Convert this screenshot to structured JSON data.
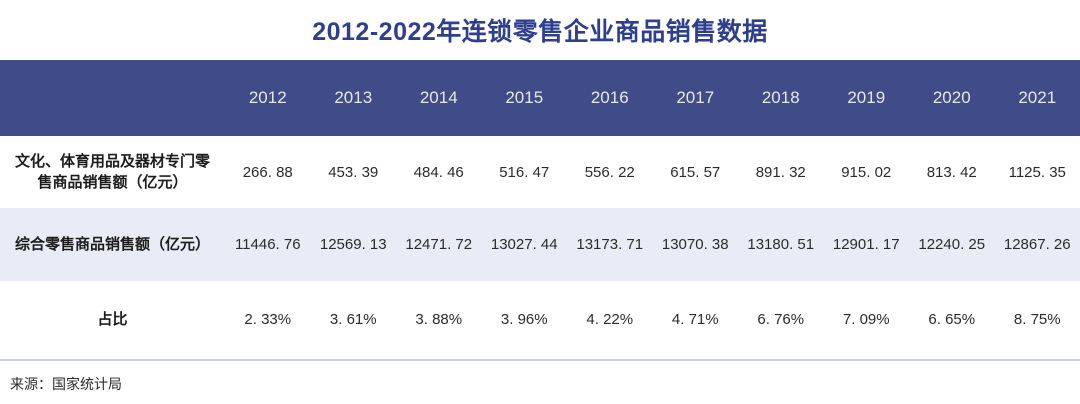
{
  "title": "2012-2022年连锁零售企业商品销售数据",
  "colors": {
    "header_bg": "#3f4c87",
    "title_text": "#2e3f8f",
    "alt_row_bg": "#e9ecf6",
    "divider": "#c9cfe4",
    "header_text": "#e6e9f2",
    "body_text": "#2b2b2b"
  },
  "table": {
    "years": [
      "2012",
      "2013",
      "2014",
      "2015",
      "2016",
      "2017",
      "2018",
      "2019",
      "2020",
      "2021"
    ],
    "rows": [
      {
        "label": "文化、体育用品及器材专门零售商品销售额（亿元）",
        "values": [
          "266. 88",
          "453. 39",
          "484. 46",
          "516. 47",
          "556. 22",
          "615. 57",
          "891. 32",
          "915. 02",
          "813. 42",
          "1125. 35"
        ]
      },
      {
        "label": "综合零售商品销售额（亿元）",
        "values": [
          "11446. 76",
          "12569. 13",
          "12471. 72",
          "13027. 44",
          "13173. 71",
          "13070. 38",
          "13180. 51",
          "12901. 17",
          "12240. 25",
          "12867. 26"
        ]
      },
      {
        "label": "占比",
        "values": [
          "2. 33%",
          "3. 61%",
          "3. 88%",
          "3. 96%",
          "4. 22%",
          "4. 71%",
          "6. 76%",
          "7. 09%",
          "6. 65%",
          "8. 75%"
        ]
      }
    ]
  },
  "source": "来源：国家统计局",
  "chart_data": {
    "type": "table",
    "title": "2012-2022年连锁零售企业商品销售数据",
    "categories": [
      "2012",
      "2013",
      "2014",
      "2015",
      "2016",
      "2017",
      "2018",
      "2019",
      "2020",
      "2021"
    ],
    "series": [
      {
        "name": "文化、体育用品及器材专门零售商品销售额（亿元）",
        "values": [
          266.88,
          453.39,
          484.46,
          516.47,
          556.22,
          615.57,
          891.32,
          915.02,
          813.42,
          1125.35
        ]
      },
      {
        "name": "综合零售商品销售额（亿元）",
        "values": [
          11446.76,
          12569.13,
          12471.72,
          13027.44,
          13173.71,
          13070.38,
          13180.51,
          12901.17,
          12240.25,
          12867.26
        ]
      },
      {
        "name": "占比(%)",
        "values": [
          2.33,
          3.61,
          3.88,
          3.96,
          4.22,
          4.71,
          6.76,
          7.09,
          6.65,
          8.75
        ]
      }
    ],
    "source": "来源：国家统计局"
  }
}
